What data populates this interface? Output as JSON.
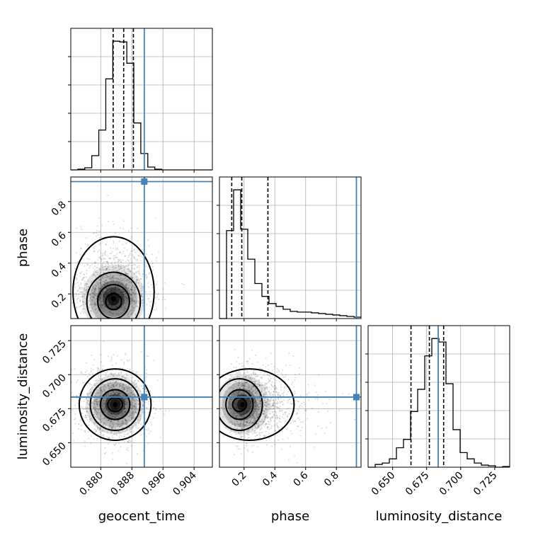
{
  "chart_data": {
    "type": "corner",
    "parameters": [
      "geocent_time",
      "phase",
      "luminosity_distance"
    ],
    "axis_labels": {
      "x": [
        "geocent_time",
        "phase",
        "luminosity_distance"
      ],
      "y": [
        "",
        "phase",
        "luminosity_distance"
      ]
    },
    "ranges": [
      [
        0.8723,
        0.9087
      ],
      [
        0.04,
        0.96
      ],
      [
        0.632,
        0.736
      ]
    ],
    "truths": [
      0.8912,
      0.93,
      0.6835
    ],
    "truth_color": "#4682b4",
    "grid": true,
    "ticks": {
      "geocent_time": {
        "values": [
          0.88,
          0.888,
          0.896,
          0.904
        ],
        "labels": [
          "0.880",
          "0.888",
          "0.896",
          "0.904"
        ]
      },
      "phase": {
        "values": [
          0.2,
          0.4,
          0.6,
          0.8
        ],
        "labels": [
          "0.2",
          "0.4",
          "0.6",
          "0.8"
        ]
      },
      "luminosity_distance": {
        "values": [
          0.65,
          0.675,
          0.7,
          0.725
        ],
        "labels": [
          "0.650",
          "0.675",
          "0.700",
          "0.725"
        ]
      }
    },
    "quantiles": [
      [
        0.8832,
        0.8859,
        0.8884
      ],
      [
        0.12,
        0.185,
        0.355
      ],
      [
        0.6635,
        0.677,
        0.6875
      ]
    ],
    "histograms": [
      {
        "bin_edges": [
          0.8723,
          0.8741,
          0.8759,
          0.8777,
          0.8795,
          0.8813,
          0.8831,
          0.8849,
          0.8867,
          0.8885,
          0.8903,
          0.8921,
          0.8939,
          0.8957,
          0.8975,
          0.8993,
          0.9011,
          0.9029,
          0.9047,
          0.9065,
          0.9087
        ],
        "counts": [
          0,
          1,
          3,
          20,
          56,
          128,
          181,
          180,
          150,
          66,
          23,
          4,
          1,
          0,
          0,
          0,
          0,
          0,
          0,
          0
        ]
      },
      {
        "bin_edges": [
          0.04,
          0.086,
          0.132,
          0.178,
          0.224,
          0.27,
          0.316,
          0.362,
          0.408,
          0.454,
          0.5,
          0.546,
          0.592,
          0.638,
          0.684,
          0.73,
          0.776,
          0.822,
          0.868,
          0.914,
          0.96
        ],
        "counts": [
          0,
          123,
          180,
          125,
          83,
          49,
          31,
          21,
          17,
          13,
          10,
          9,
          9,
          8,
          7,
          6,
          5,
          4,
          3,
          2
        ]
      },
      {
        "bin_edges": [
          0.632,
          0.6372,
          0.6424,
          0.6476,
          0.6528,
          0.658,
          0.6632,
          0.6684,
          0.6736,
          0.6788,
          0.684,
          0.6892,
          0.6944,
          0.6996,
          0.7048,
          0.71,
          0.7152,
          0.7204,
          0.7256,
          0.7308,
          0.736
        ],
        "counts": [
          0,
          4,
          6,
          12,
          28,
          40,
          80,
          112,
          160,
          185,
          180,
          120,
          54,
          21,
          12,
          6,
          3,
          2,
          0,
          1
        ]
      }
    ],
    "pairs": [
      {
        "x": "geocent_time",
        "y": "phase",
        "peak": [
          0.8833,
          0.15
        ]
      },
      {
        "x": "geocent_time",
        "y": "luminosity_distance",
        "peak": [
          0.8837,
          0.678
        ]
      },
      {
        "x": "phase",
        "y": "luminosity_distance",
        "peak": [
          0.17,
          0.678
        ]
      }
    ]
  }
}
